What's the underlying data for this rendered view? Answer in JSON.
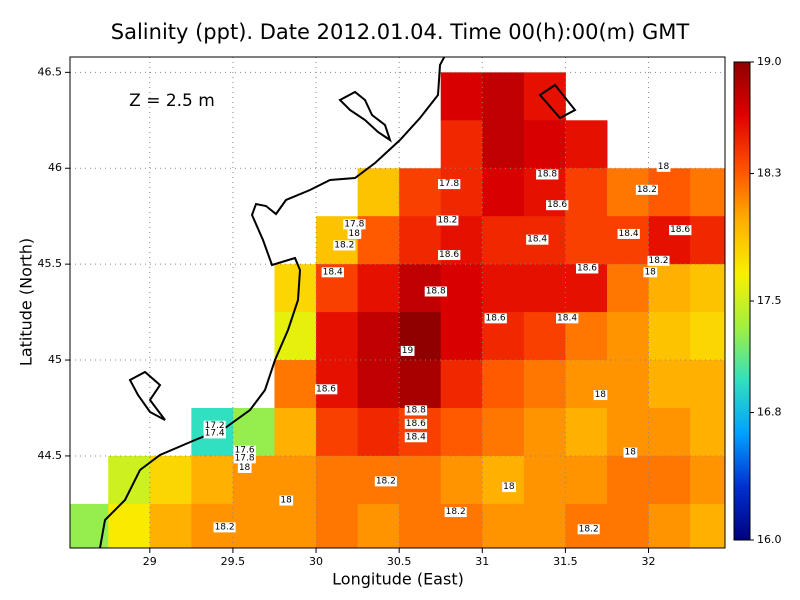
{
  "chart_data": {
    "type": "contour",
    "title": "Salinity (ppt). Date 2012.01.04. Time 00(h):00(m) GMT",
    "annotation": "Z = 2.5 m",
    "x_label": "Longitude (East)",
    "y_label": "Latitude (North)",
    "xlim": [
      28.52,
      32.46
    ],
    "ylim": [
      44.02,
      46.58
    ],
    "xticks": [
      29,
      29.5,
      30,
      30.5,
      31,
      31.5,
      32
    ],
    "yticks": [
      44.5,
      45,
      45.5,
      46,
      46.5
    ],
    "grid": true,
    "x": [
      28.625,
      28.875,
      29.125,
      29.375,
      29.625,
      29.875,
      30.125,
      30.375,
      30.625,
      30.875,
      31.125,
      31.375,
      31.625,
      31.875,
      32.125,
      32.375
    ],
    "y": [
      46.375,
      46.125,
      45.875,
      45.625,
      45.375,
      45.125,
      44.875,
      44.625,
      44.375,
      44.125
    ],
    "z": [
      [
        null,
        null,
        null,
        null,
        null,
        null,
        null,
        null,
        null,
        18.7,
        18.8,
        18.6,
        null,
        null,
        null,
        null
      ],
      [
        null,
        null,
        null,
        null,
        null,
        null,
        null,
        null,
        null,
        18.5,
        18.8,
        18.7,
        18.6,
        null,
        null,
        null
      ],
      [
        null,
        null,
        null,
        null,
        null,
        null,
        null,
        17.9,
        18.4,
        18.5,
        18.7,
        18.6,
        18.4,
        18.2,
        18.3,
        18.2
      ],
      [
        null,
        null,
        null,
        null,
        null,
        null,
        17.9,
        18.3,
        18.5,
        18.6,
        18.5,
        18.5,
        18.4,
        18.4,
        18.6,
        18.5
      ],
      [
        null,
        null,
        null,
        null,
        null,
        17.8,
        18.4,
        18.6,
        18.8,
        18.7,
        18.6,
        18.6,
        18.6,
        18.2,
        18.0,
        17.9
      ],
      [
        null,
        null,
        null,
        null,
        null,
        17.6,
        18.6,
        18.8,
        19.0,
        18.7,
        18.5,
        18.4,
        18.2,
        18.1,
        17.9,
        17.8
      ],
      [
        null,
        null,
        null,
        null,
        null,
        18.2,
        18.6,
        18.8,
        18.9,
        18.5,
        18.3,
        18.2,
        18.1,
        18.1,
        18.0,
        18.0
      ],
      [
        null,
        null,
        null,
        17.0,
        17.3,
        18.0,
        18.4,
        18.5,
        18.4,
        18.3,
        18.2,
        18.1,
        18.0,
        18.1,
        18.1,
        18.0
      ],
      [
        null,
        17.5,
        17.8,
        18.0,
        18.1,
        18.1,
        18.2,
        18.2,
        18.2,
        18.1,
        18.0,
        18.1,
        18.1,
        18.2,
        18.2,
        18.1
      ],
      [
        17.3,
        17.7,
        18.0,
        18.1,
        18.1,
        18.1,
        18.2,
        18.1,
        18.2,
        18.2,
        18.1,
        18.1,
        18.2,
        18.2,
        18.1,
        18.0
      ]
    ],
    "zlim": [
      16,
      19
    ],
    "zticks": [
      {
        "value": 16,
        "label": "16.0"
      },
      16.8,
      17.5,
      18.3,
      {
        "value": 19,
        "label": "19.0"
      }
    ],
    "colors": [
      "#00007f",
      "#0030d0",
      "#00a0ff",
      "#30e0c0",
      "#a0f040",
      "#f8f000",
      "#ffb000",
      "#ff5000",
      "#e00000",
      "#900000"
    ],
    "contour_labels": [
      {
        "x": 31.39,
        "y": 45.97,
        "value": 18.8
      },
      {
        "x": 31.45,
        "y": 45.81,
        "value": 18.6
      },
      {
        "x": 32.09,
        "y": 46.01,
        "value": 18
      },
      {
        "x": 31.99,
        "y": 45.89,
        "value": 18.2
      },
      {
        "x": 30.8,
        "y": 45.92,
        "value": 17.8
      },
      {
        "x": 30.79,
        "y": 45.73,
        "value": 18.2
      },
      {
        "x": 30.23,
        "y": 45.71,
        "value": 17.8
      },
      {
        "x": 30.23,
        "y": 45.66,
        "value": 18
      },
      {
        "x": 30.17,
        "y": 45.6,
        "value": 18.2
      },
      {
        "x": 31.33,
        "y": 45.63,
        "value": 18.4
      },
      {
        "x": 31.88,
        "y": 45.66,
        "value": 18.4
      },
      {
        "x": 32.19,
        "y": 45.68,
        "value": 18.6
      },
      {
        "x": 30.8,
        "y": 45.55,
        "value": 18.6
      },
      {
        "x": 30.1,
        "y": 45.46,
        "value": 18.4
      },
      {
        "x": 31.63,
        "y": 45.48,
        "value": 18.6
      },
      {
        "x": 32.06,
        "y": 45.52,
        "value": 18.2
      },
      {
        "x": 32.01,
        "y": 45.46,
        "value": 18
      },
      {
        "x": 30.72,
        "y": 45.36,
        "value": 18.8
      },
      {
        "x": 31.08,
        "y": 45.22,
        "value": 18.6
      },
      {
        "x": 31.51,
        "y": 45.22,
        "value": 18.4
      },
      {
        "x": 30.55,
        "y": 45.05,
        "value": 19
      },
      {
        "x": 30.06,
        "y": 44.85,
        "value": 18.6
      },
      {
        "x": 30.6,
        "y": 44.74,
        "value": 18.8
      },
      {
        "x": 30.6,
        "y": 44.67,
        "value": 18.6
      },
      {
        "x": 30.6,
        "y": 44.6,
        "value": 18.4
      },
      {
        "x": 31.71,
        "y": 44.82,
        "value": 18
      },
      {
        "x": 31.89,
        "y": 44.52,
        "value": 18
      },
      {
        "x": 29.39,
        "y": 44.66,
        "value": 17.2
      },
      {
        "x": 29.39,
        "y": 44.62,
        "value": 17.4
      },
      {
        "x": 29.57,
        "y": 44.53,
        "value": 17.6
      },
      {
        "x": 29.57,
        "y": 44.49,
        "value": 17.8
      },
      {
        "x": 29.57,
        "y": 44.44,
        "value": 18
      },
      {
        "x": 30.42,
        "y": 44.37,
        "value": 18.2
      },
      {
        "x": 31.16,
        "y": 44.34,
        "value": 18
      },
      {
        "x": 29.82,
        "y": 44.27,
        "value": 18
      },
      {
        "x": 29.45,
        "y": 44.13,
        "value": 18.2
      },
      {
        "x": 30.84,
        "y": 44.21,
        "value": 18.2
      },
      {
        "x": 31.64,
        "y": 44.12,
        "value": 18.2
      }
    ]
  }
}
